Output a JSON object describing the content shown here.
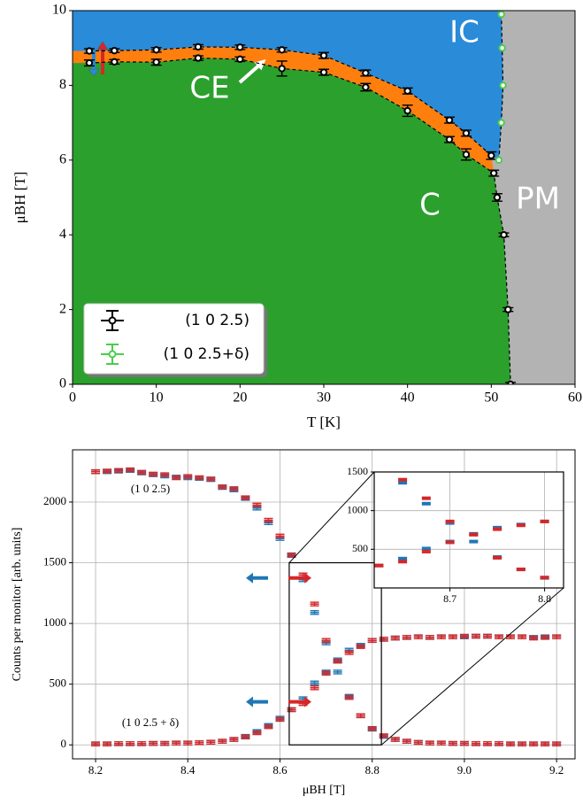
{
  "chart_data": [
    {
      "type": "scatter",
      "x_label": "T [K]",
      "y_label": "μBH [T]",
      "xlim": [
        0,
        60
      ],
      "ylim": [
        0,
        10
      ],
      "xticks": [
        0,
        10,
        20,
        30,
        40,
        50,
        60
      ],
      "yticks": [
        0,
        2,
        4,
        6,
        8,
        10
      ],
      "grid": false,
      "legend": "lower left",
      "regions": [
        {
          "label": "IC",
          "color": "#2a8bd8"
        },
        {
          "label": "CE",
          "color": "#ff7f0e"
        },
        {
          "label": "C",
          "color": "#2ca02c"
        },
        {
          "label": "PM",
          "color": "#b3b3b3"
        }
      ],
      "series": [
        {
          "name": "(1 0 2.5)",
          "color": "#000000",
          "marker": "o",
          "linestyle": "dashed",
          "x": [
            2,
            5,
            10,
            15,
            20,
            25,
            30,
            35,
            40,
            45,
            47,
            50
          ],
          "values": [
            8.92,
            8.93,
            8.95,
            9.03,
            9.02,
            8.95,
            8.8,
            8.33,
            7.85,
            7.07,
            6.72,
            6.12
          ],
          "yerr": [
            0.06,
            0.05,
            0.06,
            0.06,
            0.06,
            0.06,
            0.08,
            0.08,
            0.08,
            0.08,
            0.08,
            0.1
          ]
        },
        {
          "color": "#000000",
          "marker": "o",
          "linestyle": "dashed",
          "x": [
            2,
            5,
            10,
            15,
            20,
            25,
            30,
            35,
            40,
            45,
            47,
            50.3,
            50.7,
            51.5,
            52,
            52.3
          ],
          "values": [
            8.6,
            8.63,
            8.62,
            8.73,
            8.7,
            8.45,
            8.35,
            7.95,
            7.32,
            6.55,
            6.15,
            5.65,
            5.0,
            4.0,
            2.0,
            0
          ],
          "yerr": [
            0.08,
            0.06,
            0.08,
            0.06,
            0.06,
            0.2,
            0.08,
            0.1,
            0.15,
            0.08,
            0.15,
            0.08,
            0.1,
            0.05,
            0.05,
            0.05
          ]
        },
        {
          "name": "(1 0 2.5+δ)",
          "color": "#4ccc4c",
          "marker": "o",
          "linestyle": "dashed",
          "x": [
            51.2,
            51.3,
            51.4,
            51.2,
            50.9
          ],
          "values": [
            9.9,
            9.0,
            8.0,
            7.0,
            6.0
          ]
        }
      ]
    },
    {
      "type": "scatter",
      "x_label": "μBH [T]",
      "y_label": "Counts per monitor [arb. units]",
      "xlim": [
        8.15,
        9.24
      ],
      "ylim": [
        -115,
        2430
      ],
      "xticks": [
        8.2,
        8.4,
        8.6,
        8.8,
        {
          "value": 9.0,
          "label": "9.0"
        },
        9.2
      ],
      "yticks": [
        0,
        500,
        1000,
        1500,
        2000
      ],
      "grid": true,
      "annotations": [
        "(1 0 2.5)",
        "(1 0 2.5 + δ)"
      ],
      "x": [
        8.2,
        8.225,
        8.25,
        8.275,
        8.3,
        8.325,
        8.35,
        8.375,
        8.4,
        8.425,
        8.45,
        8.475,
        8.5,
        8.525,
        8.55,
        8.575,
        8.6,
        8.625,
        8.65,
        8.675,
        8.7,
        8.725,
        8.75,
        8.775,
        8.8,
        8.825,
        8.85,
        8.875,
        8.9,
        8.925,
        8.95,
        8.975,
        9.0,
        9.025,
        9.05,
        9.075,
        9.1,
        9.125,
        9.15,
        9.175,
        9.2
      ],
      "series": [
        {
          "color": "#1f77b4",
          "marker": "_",
          "yerr": 15,
          "values": [
            2250,
            2250,
            2255,
            2260,
            2240,
            2225,
            2215,
            2205,
            2200,
            2195,
            2185,
            2120,
            2100,
            2030,
            1950,
            1830,
            1700,
            1560,
            1360,
            1090,
            840,
            600,
            400,
            240,
            130,
            70,
            45,
            30,
            20,
            15,
            15,
            12,
            12,
            10,
            10,
            10,
            8,
            8,
            8,
            8,
            8
          ]
        },
        {
          "color": "#d62728",
          "marker": "_",
          "yerr": 15,
          "values": [
            2250,
            2255,
            2260,
            2265,
            2245,
            2230,
            2225,
            2200,
            2210,
            2200,
            2190,
            2125,
            2110,
            2035,
            1975,
            1850,
            1720,
            1565,
            1400,
            1160,
            860,
            690,
            390,
            240,
            135,
            75,
            45,
            30,
            20,
            15,
            15,
            12,
            12,
            10,
            10,
            10,
            8,
            8,
            8,
            8,
            8
          ]
        },
        {
          "color": "#1f77b4",
          "marker": "_",
          "yerr": 15,
          "values": [
            8,
            8,
            10,
            10,
            10,
            12,
            12,
            15,
            15,
            18,
            22,
            30,
            45,
            70,
            110,
            160,
            220,
            290,
            380,
            510,
            600,
            700,
            780,
            820,
            860,
            870,
            880,
            885,
            890,
            885,
            890,
            890,
            890,
            895,
            895,
            890,
            890,
            890,
            885,
            890,
            890
          ]
        },
        {
          "color": "#d62728",
          "marker": "_",
          "yerr": 15,
          "values": [
            8,
            8,
            10,
            10,
            10,
            12,
            12,
            15,
            15,
            18,
            22,
            30,
            45,
            65,
            100,
            150,
            210,
            290,
            340,
            470,
            590,
            690,
            760,
            810,
            860,
            870,
            880,
            885,
            890,
            885,
            890,
            890,
            895,
            895,
            895,
            890,
            890,
            890,
            880,
            885,
            890
          ]
        }
      ],
      "inset": {
        "xlim": [
          8.62,
          8.82
        ],
        "ylim": [
          0,
          1500
        ],
        "xticks": [
          8.7,
          8.8
        ],
        "yticks": [
          500,
          1000,
          1500
        ],
        "grid": true
      }
    }
  ]
}
